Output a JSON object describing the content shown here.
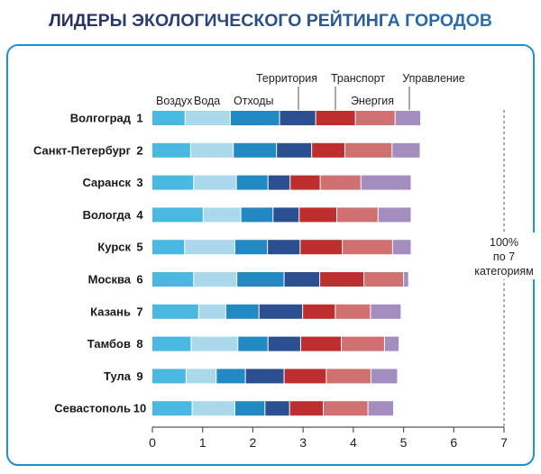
{
  "chart_data": {
    "type": "bar",
    "orientation": "horizontal",
    "stacked": true,
    "title": "ЛИДЕРЫ ЭКОЛОГИЧЕСКОГО РЕЙТИНГА ГОРОДОВ",
    "xlim": [
      0,
      7
    ],
    "xticks": [
      "0",
      "1",
      "2",
      "3",
      "4",
      "5",
      "6",
      "7"
    ],
    "categories": [
      "Волгоград",
      "Санкт-Петербург",
      "Саранск",
      "Вологда",
      "Курск",
      "Москва",
      "Казань",
      "Тамбов",
      "Тула",
      "Севастополь"
    ],
    "ranks": [
      "1",
      "2",
      "3",
      "4",
      "5",
      "6",
      "7",
      "8",
      "9",
      "10"
    ],
    "series": [
      {
        "name": "Воздух",
        "color": "#4bb8e2",
        "values": [
          0.66,
          0.77,
          0.83,
          1.02,
          0.65,
          0.83,
          0.93,
          0.78,
          0.68,
          0.8
        ]
      },
      {
        "name": "Вода",
        "color": "#a9d9ea",
        "values": [
          0.9,
          0.85,
          0.85,
          0.75,
          1.0,
          0.86,
          0.54,
          0.93,
          0.6,
          0.85
        ]
      },
      {
        "name": "Отходы",
        "color": "#2289c2",
        "values": [
          0.98,
          0.86,
          0.63,
          0.64,
          0.65,
          0.94,
          0.66,
          0.6,
          0.58,
          0.6
        ]
      },
      {
        "name": "Территория",
        "color": "#2b4f90",
        "values": [
          0.72,
          0.7,
          0.44,
          0.52,
          0.65,
          0.71,
          0.87,
          0.65,
          0.77,
          0.49
        ]
      },
      {
        "name": "Транспорт",
        "color": "#bd2e2e",
        "values": [
          0.79,
          0.66,
          0.6,
          0.75,
          0.84,
          0.88,
          0.65,
          0.81,
          0.84,
          0.67
        ]
      },
      {
        "name": "Энергия",
        "color": "#d07070",
        "values": [
          0.79,
          0.94,
          0.81,
          0.82,
          1.0,
          0.79,
          0.7,
          0.86,
          0.89,
          0.89
        ]
      },
      {
        "name": "Управление",
        "color": "#a48dbf",
        "values": [
          0.51,
          0.56,
          1.0,
          0.66,
          0.37,
          0.1,
          0.61,
          0.29,
          0.53,
          0.51
        ]
      }
    ],
    "annotation": [
      "100%",
      "по 7",
      "категориям"
    ],
    "reference_line": 7
  },
  "colors": {
    "title_start": "#2b2d5e",
    "title_end": "#2a73b0",
    "frame": "#1e8fd0",
    "axis": "#555555"
  }
}
